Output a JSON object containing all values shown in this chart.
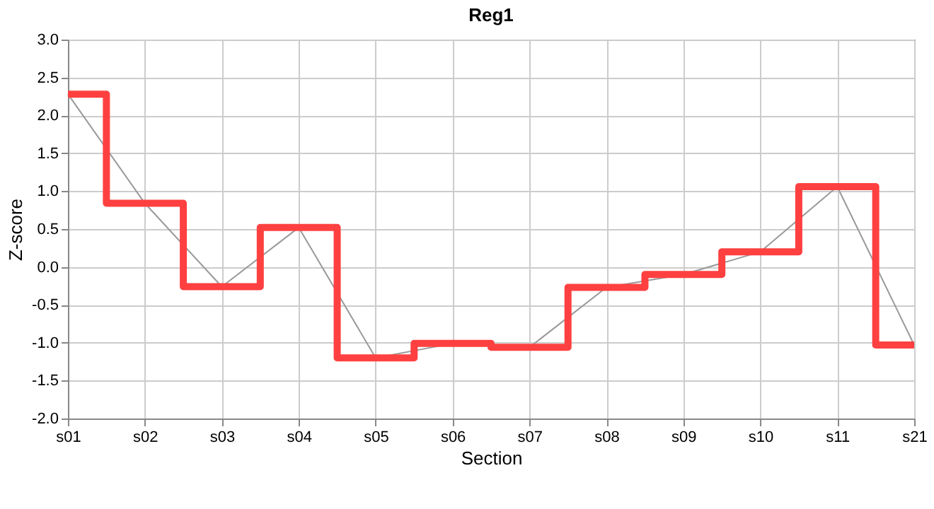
{
  "chart_data": {
    "type": "step",
    "title": "Reg1",
    "xlabel": "Section",
    "ylabel": "Z-score",
    "categories": [
      "s01",
      "s02",
      "s03",
      "s04",
      "s05",
      "s06",
      "s07",
      "s08",
      "s09",
      "s10",
      "s11",
      "s21"
    ],
    "series": [
      {
        "color": "#ff4040",
        "values": [
          2.28,
          0.84,
          -0.26,
          0.52,
          -1.2,
          -1.01,
          -1.06,
          -0.27,
          -0.1,
          0.2,
          1.06,
          -1.03
        ]
      },
      {
        "type": "line",
        "color": "#999999",
        "values": [
          2.28,
          0.84,
          -0.26,
          0.52,
          -1.2,
          -1.01,
          -1.06,
          -0.27,
          -0.1,
          0.2,
          1.06,
          -1.03
        ]
      }
    ],
    "ylim": [
      -2,
      3
    ],
    "yticks": [
      {
        "value": -2,
        "label": "-2.0"
      },
      {
        "value": -1.5,
        "label": "-1.5"
      },
      {
        "value": -1,
        "label": "-1.0"
      },
      {
        "value": -0.5,
        "label": "-0.5"
      },
      {
        "value": 0,
        "label": "0.0"
      },
      {
        "value": 0.5,
        "label": "0.5"
      },
      {
        "value": 1,
        "label": "1.0"
      },
      {
        "value": 1.5,
        "label": "1.5"
      },
      {
        "value": 2,
        "label": "2.0"
      },
      {
        "value": 2.5,
        "label": "2.5"
      },
      {
        "value": 3,
        "label": "3.0"
      }
    ],
    "grid": true
  }
}
